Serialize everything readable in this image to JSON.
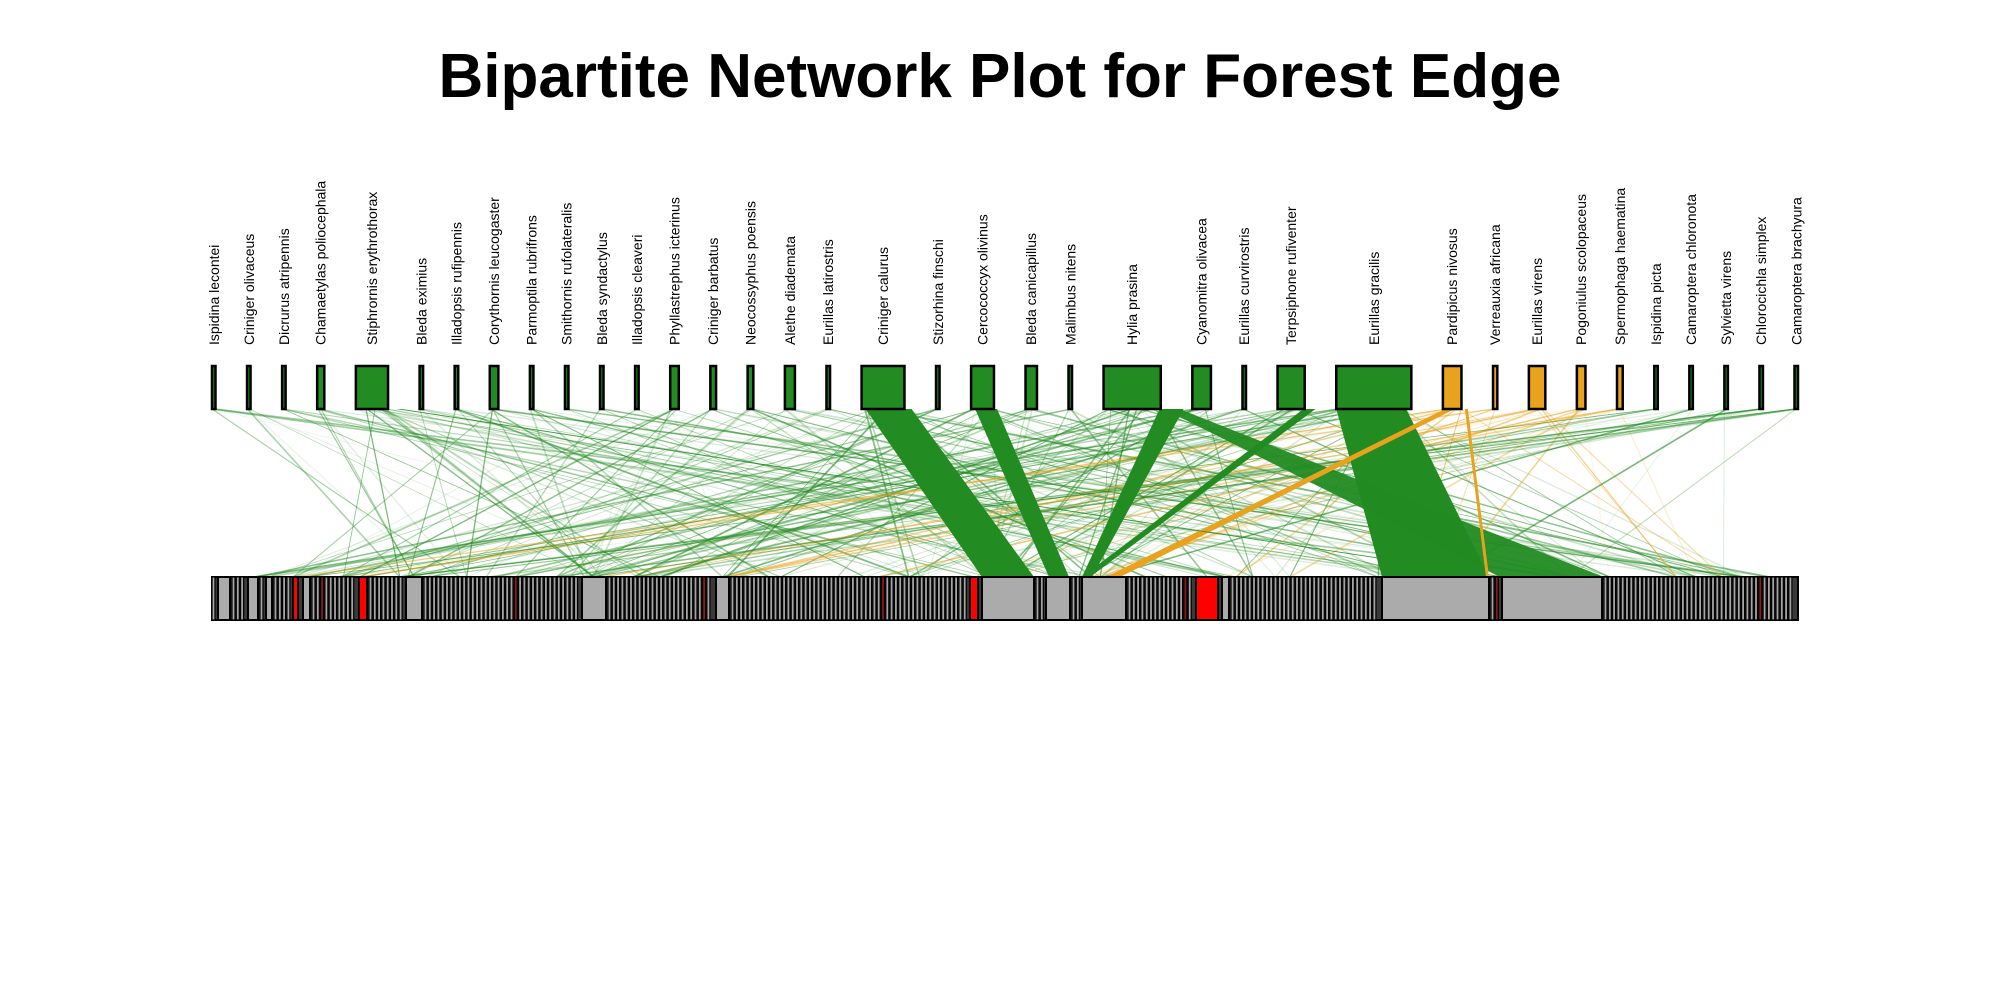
{
  "title": "Bipartite Network Plot for Forest Edge",
  "colors": {
    "green": "#228B22",
    "orange": "#E8A21D",
    "gray": "#ABABAB",
    "red": "#FF0000",
    "border": "#000000"
  },
  "upper_species": [
    {
      "name": "Ispidina lecontei",
      "group": "green",
      "weight": 0.3
    },
    {
      "name": "Criniger olivaceus",
      "group": "green",
      "weight": 0.15
    },
    {
      "name": "Dicrurus atripennis",
      "group": "green",
      "weight": 0.15
    },
    {
      "name": "Chamaetylas poliocephala",
      "group": "green",
      "weight": 1
    },
    {
      "name": "Stiphrornis erythrothorax",
      "group": "green",
      "weight": 4.5
    },
    {
      "name": "Bleda eximius",
      "group": "green",
      "weight": 0.3
    },
    {
      "name": "Illadopsis rufipennis",
      "group": "green",
      "weight": 0.5
    },
    {
      "name": "Corythornis leucogaster",
      "group": "green",
      "weight": 1.2
    },
    {
      "name": "Parmoptila rubrifrons",
      "group": "green",
      "weight": 0.3
    },
    {
      "name": "Smithornis rufolateralis",
      "group": "green",
      "weight": 0.15
    },
    {
      "name": "Bleda syndactylus",
      "group": "green",
      "weight": 0.15
    },
    {
      "name": "Illadopsis cleaveri",
      "group": "green",
      "weight": 0.5
    },
    {
      "name": "Phyllastrephus icterinus",
      "group": "green",
      "weight": 1.2
    },
    {
      "name": "Criniger barbatus",
      "group": "green",
      "weight": 0.8
    },
    {
      "name": "Neocossyphus poensis",
      "group": "green",
      "weight": 0.8
    },
    {
      "name": "Alethe diademata",
      "group": "green",
      "weight": 1.4
    },
    {
      "name": "Eurillas latirostris",
      "group": "green",
      "weight": 0.5
    },
    {
      "name": "Criniger calurus",
      "group": "green",
      "weight": 6
    },
    {
      "name": "Stizorhina finschi",
      "group": "green",
      "weight": 0.15
    },
    {
      "name": "Cercococcyx olivinus",
      "group": "green",
      "weight": 3.2
    },
    {
      "name": "Bleda canicapillus",
      "group": "green",
      "weight": 1.6
    },
    {
      "name": "Malimbus nitens",
      "group": "green",
      "weight": 0.3
    },
    {
      "name": "Hylia prasina",
      "group": "green",
      "weight": 8
    },
    {
      "name": "Cyanomitra olivacea",
      "group": "green",
      "weight": 2.6
    },
    {
      "name": "Eurillas curvirostris",
      "group": "green",
      "weight": 0.3
    },
    {
      "name": "Terpsiphone rufiventer",
      "group": "green",
      "weight": 3.8
    },
    {
      "name": "Eurillas gracilis",
      "group": "green",
      "weight": 10.5
    },
    {
      "name": "Pardipicus nivosus",
      "group": "orange",
      "weight": 2.6
    },
    {
      "name": "Verreauxia africana",
      "group": "orange",
      "weight": 0.6
    },
    {
      "name": "Eurillas virens",
      "group": "orange",
      "weight": 2.3
    },
    {
      "name": "Pogoniulus scolopaceus",
      "group": "orange",
      "weight": 1.2
    },
    {
      "name": "Spermophaga haematina",
      "group": "orange",
      "weight": 0.8
    },
    {
      "name": "Ispidina picta",
      "group": "green",
      "weight": 0.15
    },
    {
      "name": "Camaroptera chloronota",
      "group": "green",
      "weight": 0.15
    },
    {
      "name": "Sylvietta virens",
      "group": "green",
      "weight": 0.15
    },
    {
      "name": "Chlorocichla simplex",
      "group": "green",
      "weight": 0.3
    },
    {
      "name": "Camaroptera brachyura",
      "group": "green",
      "weight": 0.3
    }
  ]
}
